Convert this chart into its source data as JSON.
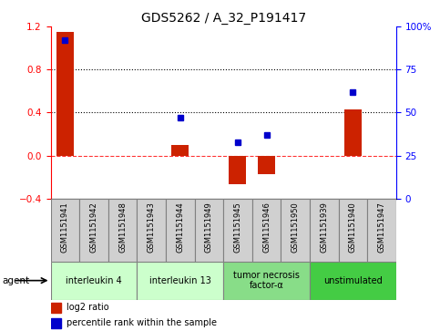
{
  "title": "GDS5262 / A_32_P191417",
  "samples": [
    "GSM1151941",
    "GSM1151942",
    "GSM1151948",
    "GSM1151943",
    "GSM1151944",
    "GSM1151949",
    "GSM1151945",
    "GSM1151946",
    "GSM1151950",
    "GSM1151939",
    "GSM1151940",
    "GSM1151947"
  ],
  "log2_ratio": [
    1.15,
    0.0,
    0.0,
    0.0,
    0.1,
    0.0,
    -0.27,
    -0.17,
    0.0,
    0.0,
    0.43,
    0.0
  ],
  "percentile": [
    92,
    null,
    null,
    null,
    47,
    null,
    33,
    37,
    null,
    null,
    62,
    null
  ],
  "agents": [
    {
      "label": "interleukin 4",
      "indices": [
        0,
        1,
        2
      ],
      "color": "#ccffcc"
    },
    {
      "label": "interleukin 13",
      "indices": [
        3,
        4,
        5
      ],
      "color": "#ccffcc"
    },
    {
      "label": "tumor necrosis\nfactor-α",
      "indices": [
        6,
        7,
        8
      ],
      "color": "#88dd88"
    },
    {
      "label": "unstimulated",
      "indices": [
        9,
        10,
        11
      ],
      "color": "#44cc44"
    }
  ],
  "ylim_left": [
    -0.4,
    1.2
  ],
  "ylim_right": [
    0,
    100
  ],
  "yticks_left": [
    -0.4,
    0.0,
    0.4,
    0.8,
    1.2
  ],
  "yticks_right": [
    0,
    25,
    50,
    75,
    100
  ],
  "bar_color": "#cc2200",
  "dot_color": "#0000cc",
  "dotted_line_y": [
    0.4,
    0.8
  ],
  "zero_line_y": 0.0,
  "grid_color": "#888888",
  "label_bg_color": "#d0d0d0"
}
